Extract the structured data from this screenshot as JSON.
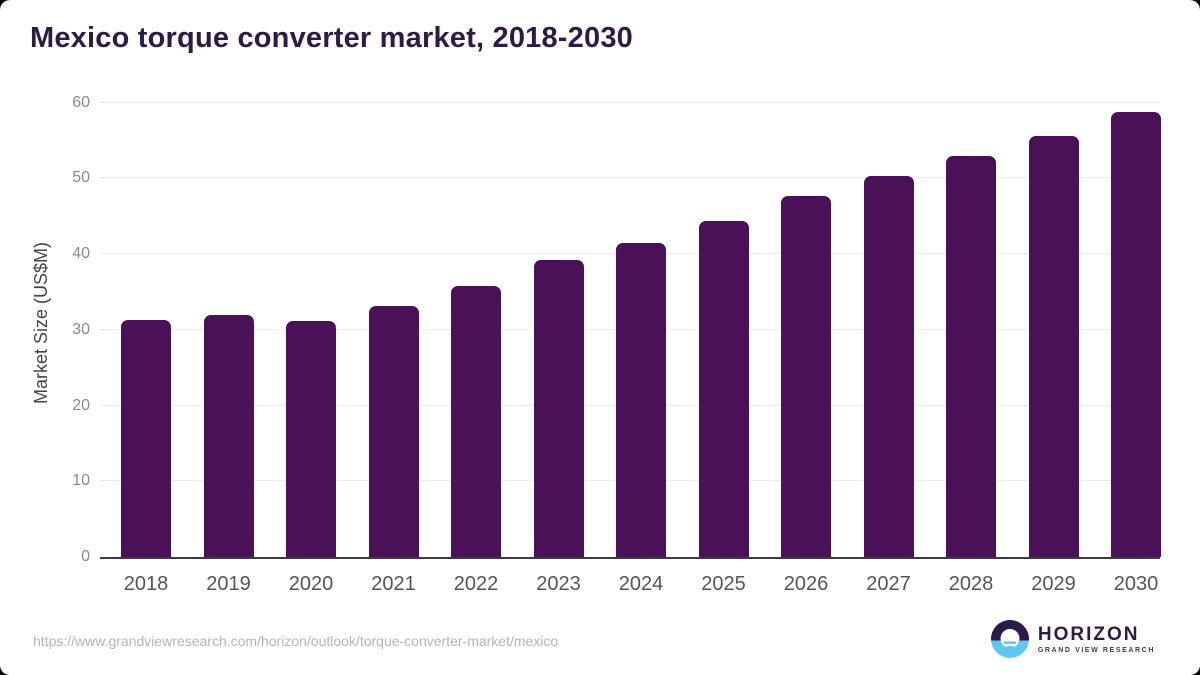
{
  "title": "Mexico torque converter market, 2018-2030",
  "chart_data": {
    "type": "bar",
    "title": "Mexico torque converter market, 2018-2030",
    "categories": [
      "2018",
      "2019",
      "2020",
      "2021",
      "2022",
      "2023",
      "2024",
      "2025",
      "2026",
      "2027",
      "2028",
      "2029",
      "2030"
    ],
    "values": [
      31.3,
      31.9,
      31.1,
      33.2,
      35.8,
      39.2,
      41.4,
      44.4,
      47.7,
      50.3,
      53.0,
      55.6,
      58.8
    ],
    "xlabel": "",
    "ylabel": "Market Size (US$M)",
    "ylim": [
      0,
      60
    ],
    "yticks": [
      0,
      10,
      20,
      30,
      40,
      50,
      60
    ],
    "grid": "horizontal-only",
    "legend": "none"
  },
  "footer": {
    "source_url": "https://www.grandviewresearch.com/horizon/outlook/torque-converter-market/mexico",
    "logo_name": "HORIZON",
    "logo_subtitle": "GRAND VIEW RESEARCH"
  },
  "colors": {
    "bar": "#4a1158",
    "title_text": "#2e1a47",
    "axis_line": "#3c3c3c",
    "gridline": "#ececec",
    "y_tick_label": "#8a8a8a",
    "x_tick_label": "#555555",
    "y_axis_label": "#444444",
    "url_text": "#b5b5b5",
    "logo_purple": "#2e1a47",
    "logo_sub_purple": "#43306b",
    "logo_blue": "#5ec8f2"
  }
}
